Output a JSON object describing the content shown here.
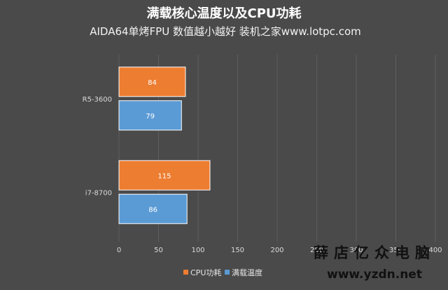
{
  "chart_data": {
    "type": "bar",
    "orientation": "horizontal",
    "title": "满载核心温度以及CPU功耗",
    "subtitle": "AIDA64单烤FPU 数值越小越好 装机之家www.lotpc.com",
    "categories": [
      "R5-3600",
      "i7-8700"
    ],
    "series": [
      {
        "name": "CPU功耗",
        "color": "#ed7d31",
        "values": [
          84,
          115
        ]
      },
      {
        "name": "满载温度",
        "color": "#5b9bd5",
        "values": [
          79,
          86
        ]
      }
    ],
    "xlim": [
      0,
      400
    ],
    "xticks": [
      "0",
      "50",
      "100",
      "150",
      "200",
      "250",
      "300",
      "350",
      "400"
    ],
    "grid": true,
    "legend_position": "bottom"
  },
  "watermark": {
    "text": "薛店亿众电脑",
    "url": "www.yzdn.net"
  }
}
